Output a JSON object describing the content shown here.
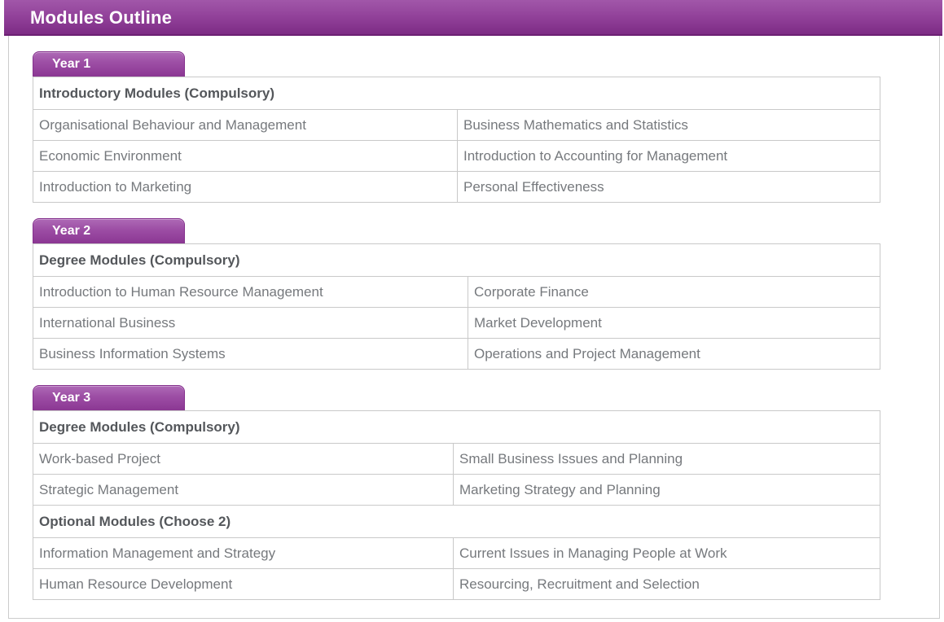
{
  "header": {
    "title": "Modules Outline"
  },
  "colors": {
    "brand_purple": "#8d3a95",
    "header_gradient_top": "#a157a9",
    "header_gradient_bottom": "#7d2c85",
    "table_border": "#c9c9c9",
    "cell_text": "#76797d",
    "heading_text": "#54575b"
  },
  "sections": [
    {
      "year_label": "Year 1",
      "groups": [
        {
          "heading": "Introductory Modules (Compulsory)",
          "rows": [
            [
              "Organisational Behaviour and Management",
              "Business Mathematics and Statistics"
            ],
            [
              "Economic Environment",
              "Introduction to Accounting for Management"
            ],
            [
              "Introduction to Marketing",
              "Personal Effectiveness"
            ]
          ]
        }
      ]
    },
    {
      "year_label": "Year 2",
      "groups": [
        {
          "heading": "Degree Modules (Compulsory)",
          "rows": [
            [
              "Introduction to Human Resource Management",
              "Corporate Finance"
            ],
            [
              "International Business",
              "Market Development"
            ],
            [
              "Business Information Systems",
              "Operations and Project Management"
            ]
          ]
        }
      ]
    },
    {
      "year_label": "Year 3",
      "groups": [
        {
          "heading": "Degree Modules (Compulsory)",
          "rows": [
            [
              "Work-based Project",
              "Small Business Issues and Planning"
            ],
            [
              "Strategic Management",
              "Marketing Strategy and Planning"
            ]
          ]
        },
        {
          "heading": "Optional Modules (Choose 2)",
          "rows": [
            [
              "Information Management and Strategy",
              "Current Issues in Managing People at Work"
            ],
            [
              "Human Resource Development",
              "Resourcing, Recruitment and Selection"
            ]
          ]
        }
      ]
    }
  ]
}
